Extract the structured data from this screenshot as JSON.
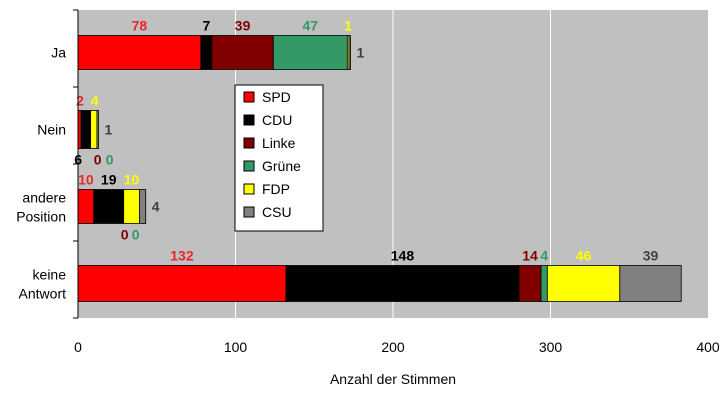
{
  "chart_data": {
    "type": "bar",
    "orientation": "horizontal",
    "stacked": true,
    "categories": [
      "Ja",
      "Nein",
      "andere Position",
      "keine Antwort"
    ],
    "series": [
      {
        "name": "SPD",
        "values": [
          78,
          2,
          10,
          132
        ],
        "color": "#ff0000",
        "label_color": "#e8262b"
      },
      {
        "name": "CDU",
        "values": [
          7,
          6,
          19,
          148
        ],
        "color": "#000000",
        "label_color": "#000000"
      },
      {
        "name": "Linke",
        "values": [
          39,
          0,
          0,
          14
        ],
        "color": "#800000",
        "label_color": "#800000"
      },
      {
        "name": "Grüne",
        "values": [
          47,
          0,
          0,
          4
        ],
        "color": "#339966",
        "label_color": "#339966"
      },
      {
        "name": "FDP",
        "values": [
          1,
          4,
          10,
          46
        ],
        "color": "#ffff00",
        "label_color": "#ffff00"
      },
      {
        "name": "CSU",
        "values": [
          1,
          1,
          4,
          39
        ],
        "color": "#808080",
        "label_color": "#404040"
      }
    ],
    "xlabel": "Anzahl der Stimmen",
    "xlim": [
      0,
      400
    ],
    "xticks": [
      "0",
      "100",
      "200",
      "300",
      "400"
    ],
    "grid": "vertical",
    "legend": "center",
    "plot_background": "#c0c0c0"
  }
}
